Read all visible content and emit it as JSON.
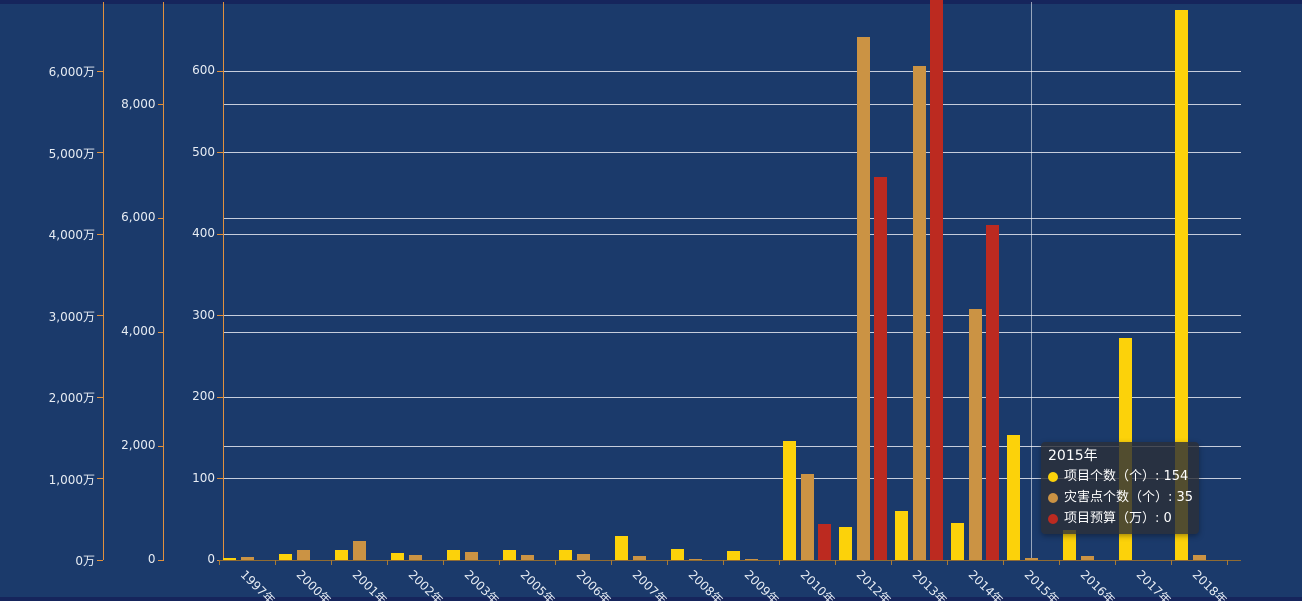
{
  "page": {
    "background_color": "#1B3A6B",
    "edge_strip_color": "#16255C"
  },
  "chart_data": {
    "type": "bar",
    "title": "",
    "legend_position": "none",
    "categories": [
      "1997年",
      "2000年",
      "2001年",
      "2002年",
      "2003年",
      "2005年",
      "2006年",
      "2007年",
      "2008年",
      "2009年",
      "2010年",
      "2012年",
      "2013年",
      "2014年",
      "2015年",
      "2016年",
      "2017年",
      "2018年"
    ],
    "series": [
      {
        "id": "projects",
        "name": "项目个数（个）",
        "color": "#FCD20A",
        "axis": "count",
        "values": [
          2,
          7,
          12,
          9,
          12,
          12,
          12,
          30,
          13,
          11,
          146,
          40,
          60,
          45,
          154,
          37,
          273,
          675
        ]
      },
      {
        "id": "disaster-points",
        "name": "灾害点个数（个）",
        "color": "#CB9344",
        "axis": "points",
        "values": [
          60,
          176,
          340,
          88,
          140,
          93,
          105,
          70,
          18,
          12,
          1510,
          9190,
          8680,
          4410,
          35,
          70,
          0,
          90
        ]
      },
      {
        "id": "budget",
        "name": "项目预算（万）",
        "color": "#BC2A20",
        "axis": "budget",
        "values": [
          0,
          0,
          0,
          0,
          0,
          0,
          0,
          0,
          0,
          0,
          446,
          4700,
          6900,
          4110,
          0,
          0,
          0,
          0
        ]
      }
    ],
    "y_axes": [
      {
        "id": "budget",
        "unit": "万",
        "tick_labels": [
          "0万",
          "1,000万",
          "2,000万",
          "3,000万",
          "4,000万",
          "5,000万",
          "6,000万"
        ],
        "tick_values": [
          0,
          1000,
          2000,
          3000,
          4000,
          5000,
          6000
        ],
        "axis_line_color": "#E0913F"
      },
      {
        "id": "points",
        "unit": "",
        "tick_labels": [
          "0",
          "2,000",
          "4,000",
          "6,000",
          "8,000"
        ],
        "tick_values": [
          0,
          2000,
          4000,
          6000,
          8000
        ],
        "axis_line_color": "#E0913F"
      },
      {
        "id": "count",
        "unit": "",
        "tick_labels": [
          "0",
          "100",
          "200",
          "300",
          "400",
          "500",
          "600"
        ],
        "tick_values": [
          0,
          100,
          200,
          300,
          400,
          500,
          600
        ],
        "axis_line_color": "#E0913F"
      }
    ],
    "x_axis": {
      "label_rotation": 45,
      "label_color": "#E8EDF4",
      "line_color": "#8F6B33",
      "tick_color": "#A87A35"
    },
    "grid": {
      "line_color": "rgba(228,232,240,0.85)"
    },
    "axis_pointer_color": "rgba(255,255,255,0.55)"
  },
  "tooltip": {
    "title": "2015年",
    "anchor_category": "2015年",
    "rows": [
      {
        "series": "projects",
        "text": "项目个数（个）: 154",
        "value": 154
      },
      {
        "series": "disaster-points",
        "text": "灾害点个数（个）: 35",
        "value": 35
      },
      {
        "series": "budget",
        "text": "项目预算（万）: 0",
        "value": 0
      }
    ]
  }
}
